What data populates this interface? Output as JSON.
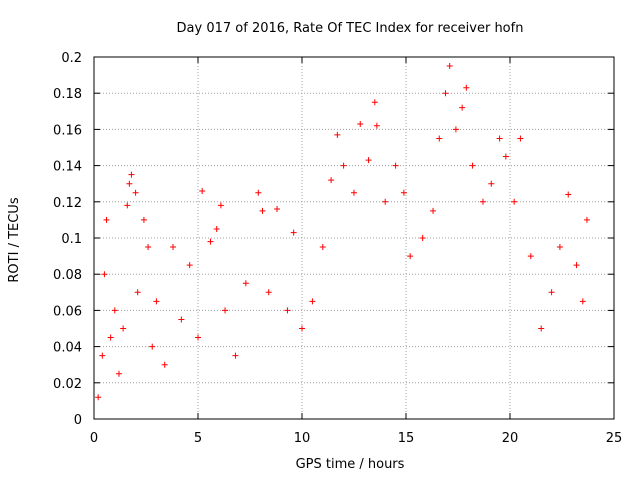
{
  "chart_data": {
    "type": "scatter",
    "title": "Day 017 of 2016, Rate Of TEC Index for receiver hofn",
    "xlabel": "GPS time / hours",
    "ylabel": "ROTI / TECUs",
    "xlim": [
      0,
      25
    ],
    "ylim": [
      0,
      0.2
    ],
    "x_ticks": [
      "0",
      "5",
      "10",
      "15",
      "20",
      "25"
    ],
    "y_ticks": [
      "0",
      "0.02",
      "0.04",
      "0.06",
      "0.08",
      "0.1",
      "0.12",
      "0.14",
      "0.16",
      "0.18",
      "0.2"
    ],
    "grid": true,
    "marker": "+",
    "color": "#ff0000",
    "series": [
      {
        "points": [
          [
            0.2,
            0.012
          ],
          [
            0.4,
            0.035
          ],
          [
            0.5,
            0.08
          ],
          [
            0.6,
            0.11
          ],
          [
            0.8,
            0.045
          ],
          [
            1.0,
            0.06
          ],
          [
            1.2,
            0.025
          ],
          [
            1.4,
            0.05
          ],
          [
            1.6,
            0.118
          ],
          [
            1.7,
            0.13
          ],
          [
            1.8,
            0.135
          ],
          [
            2.0,
            0.125
          ],
          [
            2.1,
            0.07
          ],
          [
            2.4,
            0.11
          ],
          [
            2.6,
            0.095
          ],
          [
            2.8,
            0.04
          ],
          [
            3.0,
            0.065
          ],
          [
            3.4,
            0.03
          ],
          [
            3.8,
            0.095
          ],
          [
            4.2,
            0.055
          ],
          [
            4.6,
            0.085
          ],
          [
            5.0,
            0.045
          ],
          [
            5.2,
            0.126
          ],
          [
            5.6,
            0.098
          ],
          [
            5.9,
            0.105
          ],
          [
            6.1,
            0.118
          ],
          [
            6.3,
            0.06
          ],
          [
            6.8,
            0.035
          ],
          [
            7.3,
            0.075
          ],
          [
            7.9,
            0.125
          ],
          [
            8.1,
            0.115
          ],
          [
            8.4,
            0.07
          ],
          [
            8.8,
            0.116
          ],
          [
            9.3,
            0.06
          ],
          [
            9.6,
            0.103
          ],
          [
            10.0,
            0.05
          ],
          [
            10.5,
            0.065
          ],
          [
            11.0,
            0.095
          ],
          [
            11.4,
            0.132
          ],
          [
            11.7,
            0.157
          ],
          [
            12.0,
            0.14
          ],
          [
            12.5,
            0.125
          ],
          [
            12.8,
            0.163
          ],
          [
            13.2,
            0.143
          ],
          [
            13.5,
            0.175
          ],
          [
            13.6,
            0.162
          ],
          [
            14.0,
            0.12
          ],
          [
            14.5,
            0.14
          ],
          [
            14.9,
            0.125
          ],
          [
            15.2,
            0.09
          ],
          [
            15.8,
            0.1
          ],
          [
            16.3,
            0.115
          ],
          [
            16.6,
            0.155
          ],
          [
            16.9,
            0.18
          ],
          [
            17.1,
            0.195
          ],
          [
            17.4,
            0.16
          ],
          [
            17.7,
            0.172
          ],
          [
            17.9,
            0.183
          ],
          [
            18.2,
            0.14
          ],
          [
            18.7,
            0.12
          ],
          [
            19.1,
            0.13
          ],
          [
            19.5,
            0.155
          ],
          [
            19.8,
            0.145
          ],
          [
            20.2,
            0.12
          ],
          [
            20.5,
            0.155
          ],
          [
            21.0,
            0.09
          ],
          [
            21.5,
            0.05
          ],
          [
            22.0,
            0.07
          ],
          [
            22.4,
            0.095
          ],
          [
            22.8,
            0.124
          ],
          [
            23.2,
            0.085
          ],
          [
            23.5,
            0.065
          ],
          [
            23.7,
            0.11
          ]
        ]
      }
    ]
  }
}
